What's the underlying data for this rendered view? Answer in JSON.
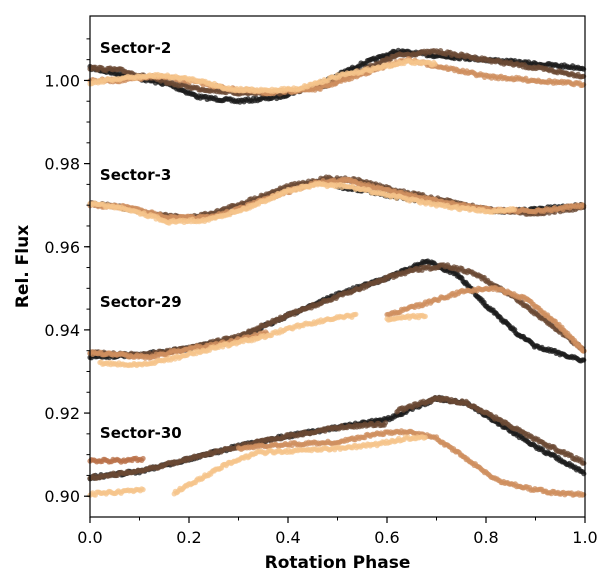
{
  "chart_data": {
    "type": "scatter",
    "xlabel": "Rotation Phase",
    "ylabel": "Rel. Flux",
    "xlim": [
      0.0,
      1.0
    ],
    "ylim": [
      0.895,
      1.0155
    ],
    "xticks": [
      "0.0",
      "0.2",
      "0.4",
      "0.6",
      "0.8",
      "1.0"
    ],
    "xtick_values": [
      0.0,
      0.2,
      0.4,
      0.6,
      0.8,
      1.0
    ],
    "yticks": [
      "0.90",
      "0.92",
      "0.94",
      "0.96",
      "0.98",
      "1.00"
    ],
    "ytick_values": [
      0.9,
      0.92,
      0.94,
      0.96,
      0.98,
      1.0
    ],
    "grid": false,
    "groups": [
      {
        "label": "Sector-2",
        "label_anchor": [
          0.02,
          1.008
        ],
        "series": [
          {
            "color": "#1c1c1c",
            "points": [
              [
                0.0,
                1.003
              ],
              [
                0.08,
                1.001
              ],
              [
                0.16,
                0.999
              ],
              [
                0.22,
                0.996
              ],
              [
                0.3,
                0.995
              ],
              [
                0.38,
                0.996
              ],
              [
                0.46,
                0.999
              ],
              [
                0.55,
                1.004
              ],
              [
                0.62,
                1.007
              ],
              [
                0.7,
                1.006
              ],
              [
                0.8,
                1.005
              ],
              [
                0.9,
                1.004
              ],
              [
                1.0,
                1.003
              ]
            ]
          },
          {
            "color": "#6b4a34",
            "points": [
              [
                0.0,
                1.003
              ],
              [
                0.06,
                1.0025
              ],
              [
                0.14,
                1.0
              ],
              [
                0.22,
                0.998
              ],
              [
                0.3,
                0.997
              ],
              [
                0.4,
                0.997
              ],
              [
                0.48,
                0.999
              ],
              [
                0.56,
                1.003
              ],
              [
                0.62,
                1.006
              ],
              [
                0.7,
                1.007
              ],
              [
                0.8,
                1.005
              ],
              [
                0.9,
                1.003
              ],
              [
                1.0,
                1.001
              ]
            ]
          },
          {
            "color": "#cf8f5f",
            "points": [
              [
                0.0,
                1.0
              ],
              [
                0.06,
                1.0
              ],
              [
                0.14,
                1.001
              ],
              [
                0.22,
                0.9995
              ],
              [
                0.28,
                0.998
              ],
              [
                0.36,
                0.997
              ],
              [
                0.46,
                0.998
              ],
              [
                0.56,
                1.002
              ],
              [
                0.64,
                1.005
              ],
              [
                0.72,
                1.003
              ],
              [
                0.8,
                1.001
              ],
              [
                0.9,
                1.0
              ],
              [
                1.0,
                0.999
              ]
            ]
          },
          {
            "color": "#f5c48b",
            "points": [
              [
                0.0,
                0.9995
              ],
              [
                0.06,
                1.0005
              ],
              [
                0.14,
                1.0012
              ],
              [
                0.22,
                1.0
              ],
              [
                0.28,
                0.998
              ],
              [
                0.34,
                0.9975
              ],
              [
                0.42,
                0.998
              ],
              [
                0.5,
                1.001
              ],
              [
                0.58,
                1.003
              ],
              [
                0.64,
                1.0045
              ],
              [
                0.7,
                1.004
              ]
            ]
          }
        ]
      },
      {
        "label": "Sector-3",
        "label_anchor": [
          0.02,
          0.9775
        ],
        "series": [
          {
            "color": "#1c1c1c",
            "points": [
              [
                0.5,
                0.9745
              ],
              [
                0.56,
                0.9735
              ],
              [
                0.62,
                0.972
              ],
              [
                0.7,
                0.9705
              ],
              [
                0.76,
                0.9695
              ],
              [
                0.84,
                0.9685
              ],
              [
                0.9,
                0.969
              ],
              [
                1.0,
                0.97
              ]
            ]
          },
          {
            "color": "#6b4a34",
            "points": [
              [
                0.0,
                0.9705
              ],
              [
                0.06,
                0.9695
              ],
              [
                0.12,
                0.968
              ],
              [
                0.2,
                0.967
              ],
              [
                0.26,
                0.9685
              ],
              [
                0.32,
                0.971
              ],
              [
                0.4,
                0.9745
              ],
              [
                0.48,
                0.9765
              ],
              [
                0.54,
                0.976
              ],
              [
                0.62,
                0.9735
              ],
              [
                0.7,
                0.9715
              ],
              [
                0.8,
                0.969
              ],
              [
                0.9,
                0.968
              ],
              [
                1.0,
                0.9695
              ]
            ]
          },
          {
            "color": "#cf8f5f",
            "points": [
              [
                0.0,
                0.97
              ],
              [
                0.08,
                0.9695
              ],
              [
                0.16,
                0.967
              ],
              [
                0.24,
                0.967
              ],
              [
                0.3,
                0.969
              ],
              [
                0.38,
                0.9725
              ],
              [
                0.46,
                0.9755
              ],
              [
                0.52,
                0.976
              ],
              [
                0.6,
                0.9735
              ],
              [
                0.7,
                0.971
              ],
              [
                0.8,
                0.969
              ],
              [
                0.9,
                0.9685
              ],
              [
                1.0,
                0.97
              ]
            ]
          },
          {
            "color": "#f5c48b",
            "points": [
              [
                0.0,
                0.9705
              ],
              [
                0.08,
                0.969
              ],
              [
                0.16,
                0.966
              ],
              [
                0.24,
                0.9665
              ],
              [
                0.32,
                0.9695
              ],
              [
                0.4,
                0.9735
              ],
              [
                0.46,
                0.975
              ],
              [
                0.52,
                0.9745
              ],
              [
                0.6,
                0.9725
              ],
              [
                0.7,
                0.97
              ],
              [
                0.8,
                0.9685
              ],
              [
                0.86,
                0.969
              ]
            ]
          }
        ]
      },
      {
        "label": "Sector-29",
        "label_anchor": [
          0.02,
          0.947
        ],
        "series": [
          {
            "color": "#1c1c1c",
            "points": [
              [
                0.0,
                0.9335
              ],
              [
                0.1,
                0.934
              ],
              [
                0.2,
                0.9355
              ],
              [
                0.3,
                0.938
              ],
              [
                0.4,
                0.9435
              ],
              [
                0.5,
                0.9485
              ],
              [
                0.6,
                0.9525
              ],
              [
                0.68,
                0.9565
              ],
              [
                0.74,
                0.9535
              ],
              [
                0.8,
                0.946
              ],
              [
                0.86,
                0.9395
              ],
              [
                0.9,
                0.936
              ],
              [
                0.96,
                0.934
              ],
              [
                1.0,
                0.9325
              ]
            ]
          },
          {
            "color": "#6b4a34",
            "points": [
              [
                0.0,
                0.9345
              ],
              [
                0.1,
                0.934
              ],
              [
                0.2,
                0.9355
              ],
              [
                0.3,
                0.9385
              ],
              [
                0.4,
                0.9435
              ],
              [
                0.5,
                0.948
              ],
              [
                0.6,
                0.9525
              ],
              [
                0.66,
                0.9545
              ],
              [
                0.72,
                0.9555
              ],
              [
                0.78,
                0.9535
              ],
              [
                0.86,
                0.9475
              ],
              [
                0.94,
                0.9405
              ],
              [
                1.0,
                0.935
              ]
            ]
          },
          {
            "color": "#cf8f5f",
            "points": [
              [
                0.0,
                0.9345
              ],
              [
                0.06,
                0.934
              ],
              [
                0.12,
                0.9335
              ],
              [
                0.2,
                0.9355
              ],
              [
                0.28,
                0.937
              ],
              [
                0.36,
                0.9395
              ]
            ]
          },
          {
            "color": "#cf8f5f",
            "points": [
              [
                0.6,
                0.9435
              ],
              [
                0.68,
                0.9465
              ],
              [
                0.76,
                0.9495
              ],
              [
                0.82,
                0.95
              ],
              [
                0.88,
                0.9475
              ],
              [
                0.94,
                0.942
              ],
              [
                1.0,
                0.9345
              ]
            ]
          },
          {
            "color": "#f5c48b",
            "points": [
              [
                0.02,
                0.932
              ],
              [
                0.1,
                0.9315
              ],
              [
                0.18,
                0.9335
              ],
              [
                0.26,
                0.936
              ],
              [
                0.34,
                0.938
              ],
              [
                0.42,
                0.941
              ],
              [
                0.48,
                0.9425
              ],
              [
                0.54,
                0.9435
              ]
            ]
          },
          {
            "color": "#f5c48b",
            "points": [
              [
                0.6,
                0.9425
              ],
              [
                0.64,
                0.943
              ],
              [
                0.68,
                0.9435
              ]
            ]
          }
        ]
      },
      {
        "label": "Sector-30",
        "label_anchor": [
          0.02,
          0.9155
        ],
        "series": [
          {
            "color": "#1c1c1c",
            "points": [
              [
                0.0,
                0.9045
              ],
              [
                0.1,
                0.906
              ],
              [
                0.2,
                0.909
              ],
              [
                0.3,
                0.912
              ],
              [
                0.4,
                0.9145
              ],
              [
                0.5,
                0.9165
              ],
              [
                0.6,
                0.9185
              ],
              [
                0.7,
                0.9235
              ],
              [
                0.76,
                0.9225
              ],
              [
                0.82,
                0.918
              ],
              [
                0.9,
                0.912
              ],
              [
                1.0,
                0.9055
              ]
            ]
          },
          {
            "color": "#6b4a34",
            "points": [
              [
                0.0,
                0.9045
              ],
              [
                0.1,
                0.906
              ],
              [
                0.2,
                0.909
              ],
              [
                0.3,
                0.912
              ],
              [
                0.4,
                0.9145
              ],
              [
                0.5,
                0.9165
              ],
              [
                0.6,
                0.9175
              ]
            ]
          },
          {
            "color": "#6b4a34",
            "points": [
              [
                0.62,
                0.9205
              ],
              [
                0.7,
                0.9235
              ],
              [
                0.76,
                0.9225
              ],
              [
                0.84,
                0.9175
              ],
              [
                0.92,
                0.9125
              ],
              [
                1.0,
                0.908
              ]
            ]
          },
          {
            "color": "#b9724a",
            "points": [
              [
                0.0,
                0.9085
              ],
              [
                0.06,
                0.9085
              ],
              [
                0.11,
                0.909
              ]
            ]
          },
          {
            "color": "#cf8f5f",
            "points": [
              [
                0.3,
                0.9115
              ],
              [
                0.4,
                0.9125
              ],
              [
                0.5,
                0.913
              ],
              [
                0.58,
                0.915
              ],
              [
                0.64,
                0.9155
              ],
              [
                0.7,
                0.914
              ],
              [
                0.76,
                0.909
              ],
              [
                0.82,
                0.904
              ],
              [
                0.88,
                0.902
              ],
              [
                0.94,
                0.9008
              ],
              [
                1.0,
                0.9005
              ]
            ]
          },
          {
            "color": "#f5c48b",
            "points": [
              [
                0.0,
                0.9005
              ],
              [
                0.06,
                0.901
              ],
              [
                0.11,
                0.9015
              ]
            ]
          },
          {
            "color": "#f5c48b",
            "points": [
              [
                0.17,
                0.9008
              ],
              [
                0.22,
                0.904
              ],
              [
                0.28,
                0.908
              ],
              [
                0.34,
                0.9105
              ],
              [
                0.42,
                0.911
              ],
              [
                0.5,
                0.9115
              ],
              [
                0.58,
                0.9125
              ],
              [
                0.64,
                0.914
              ],
              [
                0.68,
                0.914
              ]
            ]
          }
        ]
      }
    ]
  }
}
